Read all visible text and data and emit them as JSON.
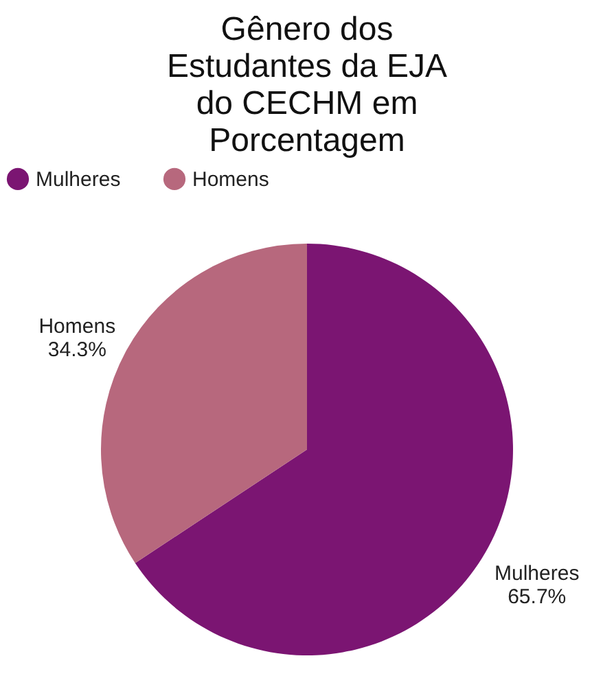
{
  "chart_data": {
    "type": "pie",
    "title": "Gênero dos Estudantes da EJA do CECHM em Porcentagem",
    "categories": [
      "Mulheres",
      "Homens"
    ],
    "values": [
      65.7,
      34.3
    ],
    "value_labels": [
      "65.7%",
      "34.3%"
    ],
    "colors": [
      "#7b1572",
      "#b7687d"
    ],
    "legend": "top"
  }
}
